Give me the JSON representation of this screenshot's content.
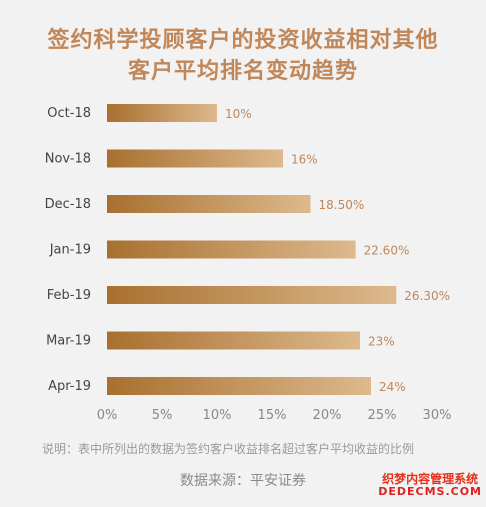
{
  "header": {
    "title_line1": "签约科学投顾客户的投资收益相对其他",
    "title_line2": "客户平均排名变动趋势"
  },
  "footer": {
    "note": "说明：表中所列出的数据为签约客户收益排名超过客户平均收益的比例",
    "source": "数据来源：平安证券"
  },
  "watermark": {
    "line1": "织梦内容管理系统",
    "line2": "DEDECMS.COM"
  },
  "colors": {
    "title": "#c0875a",
    "bar_start": "#a8702f",
    "bar_end": "#ddb98d",
    "value_label": "#c0875a",
    "axis_text": "#888888",
    "category_text": "#444444"
  },
  "chart_data": {
    "type": "bar",
    "orientation": "horizontal",
    "categories": [
      "Oct-18",
      "Nov-18",
      "Dec-18",
      "Jan-19",
      "Feb-19",
      "Mar-19",
      "Apr-19"
    ],
    "values": [
      10,
      16,
      18.5,
      22.6,
      26.3,
      23,
      24
    ],
    "value_labels": [
      "10%",
      "16%",
      "18.50%",
      "22.60%",
      "26.30%",
      "23%",
      "24%"
    ],
    "x_ticks": [
      "0%",
      "5%",
      "10%",
      "15%",
      "20%",
      "25%",
      "30%"
    ],
    "xlim": [
      0,
      30
    ],
    "grid": false,
    "legend": "none"
  }
}
